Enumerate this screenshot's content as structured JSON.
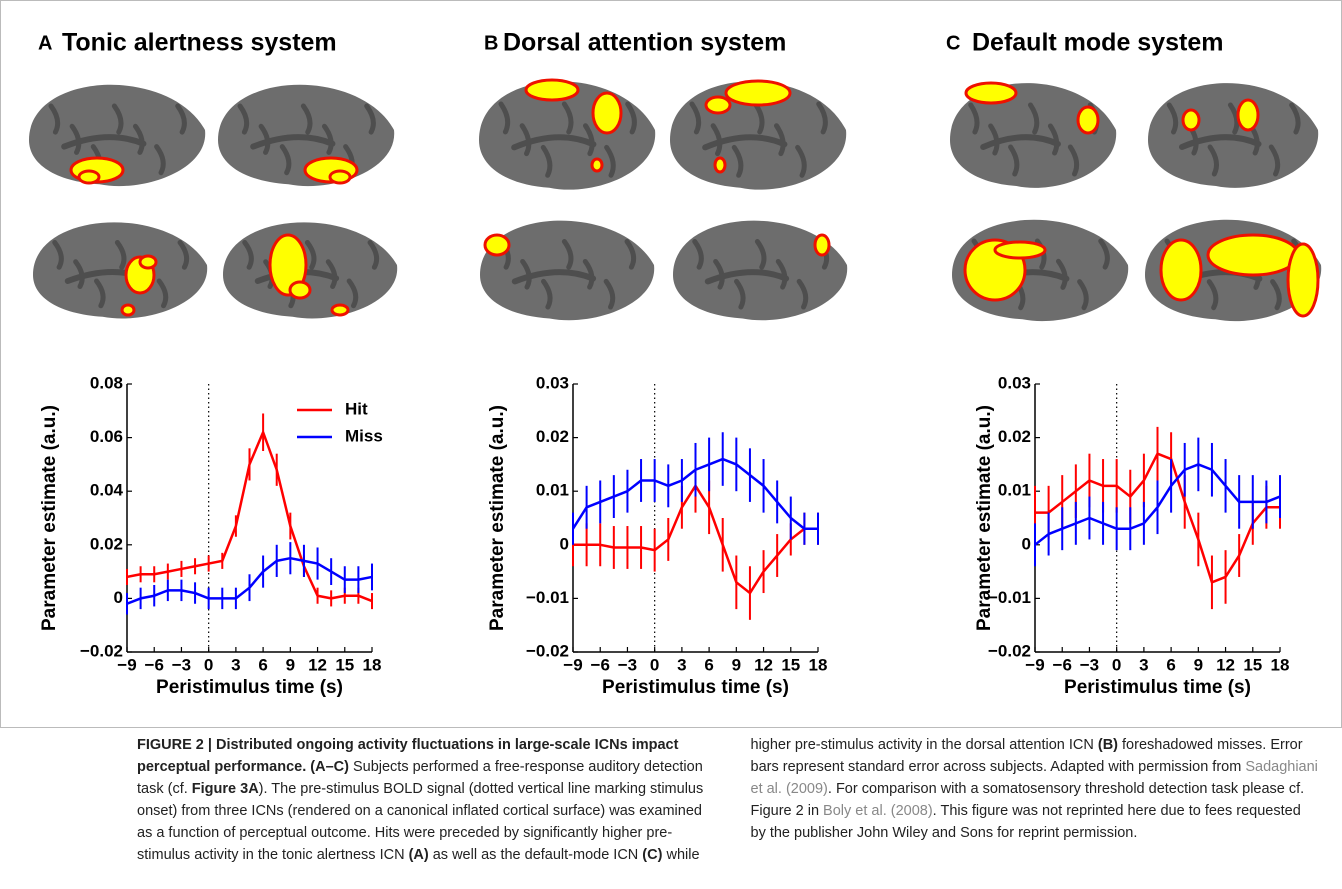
{
  "chart_data": [
    {
      "type": "line",
      "panel": "A",
      "title": "Tonic alertness system",
      "xlabel": "Peristimulus time (s)",
      "ylabel": "Parameter estimate (a.u.)",
      "x": [
        -9,
        -7.5,
        -6,
        -4.5,
        -3,
        -1.5,
        0,
        1.5,
        3,
        4.5,
        6,
        7.5,
        9,
        10.5,
        12,
        13.5,
        15,
        16.5,
        18
      ],
      "xlim": [
        -9,
        18
      ],
      "xticks": [
        {
          "value": -9,
          "label": "−9"
        },
        {
          "value": -6,
          "label": "−6"
        },
        {
          "value": -3,
          "label": "−3"
        },
        0,
        3,
        6,
        9,
        12,
        15,
        18
      ],
      "ylim": [
        -0.02,
        0.08
      ],
      "yticks": [
        {
          "value": -0.02,
          "label": "−0.02"
        },
        0,
        0.02,
        0.04,
        0.06,
        0.08
      ],
      "vlines": [
        0
      ],
      "legend": true,
      "series": [
        {
          "name": "Hit",
          "color": "#ff0000",
          "values": [
            0.008,
            0.009,
            0.009,
            0.01,
            0.011,
            0.012,
            0.013,
            0.014,
            0.027,
            0.05,
            0.062,
            0.048,
            0.027,
            0.012,
            0.001,
            0.0,
            0.001,
            0.001,
            -0.001
          ],
          "errors": [
            0.003,
            0.003,
            0.003,
            0.003,
            0.003,
            0.003,
            0.003,
            0.003,
            0.004,
            0.006,
            0.007,
            0.006,
            0.005,
            0.004,
            0.003,
            0.003,
            0.003,
            0.003,
            0.003
          ]
        },
        {
          "name": "Miss",
          "color": "#0000ff",
          "values": [
            -0.002,
            0.0,
            0.001,
            0.003,
            0.003,
            0.002,
            0.0,
            0.0,
            0.0,
            0.004,
            0.01,
            0.014,
            0.015,
            0.014,
            0.013,
            0.01,
            0.007,
            0.007,
            0.008
          ],
          "errors": [
            0.004,
            0.004,
            0.004,
            0.004,
            0.004,
            0.004,
            0.004,
            0.004,
            0.004,
            0.005,
            0.006,
            0.006,
            0.006,
            0.006,
            0.006,
            0.005,
            0.005,
            0.005,
            0.005
          ]
        }
      ]
    },
    {
      "type": "line",
      "panel": "B",
      "title": "Dorsal attention system",
      "xlabel": "Peristimulus time (s)",
      "ylabel": "Parameter estimate (a.u.)",
      "x": [
        -9,
        -7.5,
        -6,
        -4.5,
        -3,
        -1.5,
        0,
        1.5,
        3,
        4.5,
        6,
        7.5,
        9,
        10.5,
        12,
        13.5,
        15,
        16.5,
        18
      ],
      "xlim": [
        -9,
        18
      ],
      "xticks": [
        {
          "value": -9,
          "label": "−9"
        },
        {
          "value": -6,
          "label": "−6"
        },
        {
          "value": -3,
          "label": "−3"
        },
        0,
        3,
        6,
        9,
        12,
        15,
        18
      ],
      "ylim": [
        -0.02,
        0.03
      ],
      "yticks": [
        {
          "value": -0.02,
          "label": "−0.02"
        },
        {
          "value": -0.01,
          "label": "−0.01"
        },
        0,
        0.01,
        0.02,
        0.03
      ],
      "vlines": [
        0
      ],
      "legend": false,
      "series": [
        {
          "color": "#ff0000",
          "values": [
            0.0,
            0.0,
            0.0,
            -0.0005,
            -0.0005,
            -0.0005,
            -0.001,
            0.001,
            0.007,
            0.011,
            0.007,
            0.0,
            -0.007,
            -0.009,
            -0.005,
            -0.002,
            0.001,
            0.003,
            0.003
          ],
          "errors": [
            0.004,
            0.004,
            0.004,
            0.004,
            0.004,
            0.004,
            0.004,
            0.004,
            0.004,
            0.005,
            0.005,
            0.005,
            0.005,
            0.005,
            0.004,
            0.004,
            0.003,
            0.003,
            0.003
          ]
        },
        {
          "color": "#0000ff",
          "values": [
            0.003,
            0.007,
            0.008,
            0.009,
            0.01,
            0.012,
            0.012,
            0.011,
            0.012,
            0.014,
            0.015,
            0.016,
            0.015,
            0.013,
            0.011,
            0.008,
            0.005,
            0.003,
            0.003
          ],
          "errors": [
            0.003,
            0.004,
            0.004,
            0.004,
            0.004,
            0.004,
            0.004,
            0.004,
            0.004,
            0.005,
            0.005,
            0.005,
            0.005,
            0.005,
            0.005,
            0.004,
            0.004,
            0.003,
            0.003
          ]
        }
      ]
    },
    {
      "type": "line",
      "panel": "C",
      "title": "Default mode system",
      "xlabel": "Peristimulus time (s)",
      "ylabel": "Parameter estimate (a.u.)",
      "x": [
        -9,
        -7.5,
        -6,
        -4.5,
        -3,
        -1.5,
        0,
        1.5,
        3,
        4.5,
        6,
        7.5,
        9,
        10.5,
        12,
        13.5,
        15,
        16.5,
        18
      ],
      "xlim": [
        -9,
        18
      ],
      "xticks": [
        {
          "value": -9,
          "label": "−9"
        },
        {
          "value": -6,
          "label": "−6"
        },
        {
          "value": -3,
          "label": "−3"
        },
        0,
        3,
        6,
        9,
        12,
        15,
        18
      ],
      "ylim": [
        -0.02,
        0.03
      ],
      "yticks": [
        {
          "value": -0.02,
          "label": "−0.02"
        },
        {
          "value": -0.01,
          "label": "−0.01"
        },
        0,
        0.01,
        0.02,
        0.03
      ],
      "vlines": [
        0
      ],
      "legend": false,
      "series": [
        {
          "color": "#ff0000",
          "values": [
            0.006,
            0.006,
            0.008,
            0.01,
            0.012,
            0.011,
            0.011,
            0.009,
            0.012,
            0.017,
            0.016,
            0.008,
            0.001,
            -0.007,
            -0.006,
            -0.002,
            0.004,
            0.007,
            0.007
          ],
          "errors": [
            0.005,
            0.005,
            0.005,
            0.005,
            0.005,
            0.005,
            0.005,
            0.005,
            0.005,
            0.005,
            0.005,
            0.005,
            0.005,
            0.005,
            0.005,
            0.004,
            0.004,
            0.004,
            0.004
          ]
        },
        {
          "color": "#0000ff",
          "values": [
            0.0,
            0.002,
            0.003,
            0.004,
            0.005,
            0.004,
            0.003,
            0.003,
            0.004,
            0.007,
            0.011,
            0.014,
            0.015,
            0.014,
            0.011,
            0.008,
            0.008,
            0.008,
            0.009
          ],
          "errors": [
            0.004,
            0.004,
            0.004,
            0.004,
            0.004,
            0.004,
            0.004,
            0.004,
            0.004,
            0.005,
            0.005,
            0.005,
            0.005,
            0.005,
            0.005,
            0.005,
            0.005,
            0.004,
            0.004
          ]
        }
      ]
    }
  ],
  "caption": [
    {
      "text": "FIGURE 2 | Distributed ongoing activity fluctuations in large-scale ICNs impact perceptual performance.",
      "style": "bold"
    },
    {
      "text": " (A–C)",
      "style": "bold"
    },
    {
      "text": " Subjects performed a free-response auditory detection task (cf. ",
      "style": "normal"
    },
    {
      "text": "Figure 3A",
      "style": "bold"
    },
    {
      "text": "). The pre-stimulus BOLD signal (dotted vertical line marking stimulus onset) from three ICNs (rendered on a canonical inflated cortical surface) was examined as a function of perceptual outcome. Hits were preceded by significantly higher pre-stimulus activity in the tonic alertness ICN ",
      "style": "normal"
    },
    {
      "text": "(A)",
      "style": "bold"
    },
    {
      "text": " as well as the default-mode ICN ",
      "style": "normal"
    },
    {
      "text": "(C)",
      "style": "bold"
    },
    {
      "text": " while higher pre-stimulus activity in the dorsal attention ICN ",
      "style": "normal"
    },
    {
      "text": "(B)",
      "style": "bold"
    },
    {
      "text": " foreshadowed misses. Error bars represent standard error across subjects. Adapted with permission from ",
      "style": "normal"
    },
    {
      "text": "Sadaghiani et al. (2009)",
      "style": "link"
    },
    {
      "text": ". For comparison with a somatosensory threshold detection task please cf. Figure 2 in ",
      "style": "normal"
    },
    {
      "text": "Boly et al. (2008)",
      "style": "link"
    },
    {
      "text": ". This figure was not reprinted here due to fees requested by the publisher John Wiley and Sons for reprint permission.",
      "style": "normal"
    }
  ]
}
